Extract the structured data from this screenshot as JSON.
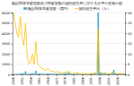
{
  "chart_data": {
    "type": "bar",
    "title": "施設関係等被害額及び同被害額の国民総生産に対する比率の推移の図",
    "categories": [
      1946,
      null,
      null,
      null,
      null,
      1951,
      null,
      null,
      null,
      null,
      1956,
      null,
      null,
      null,
      null,
      1961,
      null,
      null,
      null,
      null,
      1966,
      null,
      null,
      null,
      null,
      1971,
      null,
      null,
      null,
      null,
      1976,
      null,
      null,
      null,
      null,
      1981,
      null,
      null,
      null,
      null,
      1986,
      null,
      null,
      null,
      null,
      1991,
      null,
      null,
      null,
      null,
      1996,
      null,
      null,
      null,
      null,
      2001,
      null,
      null,
      null,
      null,
      2006,
      null,
      null,
      null,
      null
    ],
    "series": [
      {
        "name": "施設関係等被害額（億円）",
        "type": "bar",
        "color": "#4bacc6",
        "values": [
          30,
          40,
          50,
          60,
          80,
          100,
          120,
          300,
          80,
          60,
          80,
          130,
          80,
          350,
          100,
          80,
          70,
          80,
          60,
          70,
          100,
          80,
          60,
          70,
          60,
          70,
          80,
          60,
          70,
          80,
          130,
          100,
          220,
          70,
          60,
          70,
          60,
          130,
          60,
          60,
          70,
          60,
          60,
          60,
          60,
          100,
          80,
          140,
          80,
          6000,
          200,
          150,
          120,
          150,
          80,
          100,
          80,
          200,
          450,
          120,
          80,
          100,
          110,
          80,
          100
        ]
      },
      {
        "name": "国民総生産比（%）",
        "type": "line",
        "color": "#ffc000",
        "axis": "y2",
        "values": [
          30,
          25,
          20,
          18,
          28,
          18,
          14,
          25,
          8,
          5,
          6,
          10,
          5,
          16,
          5,
          4,
          3,
          3,
          2,
          2,
          3,
          2,
          1.5,
          1.5,
          1,
          1.2,
          1.2,
          0.8,
          0.8,
          0.8,
          1.2,
          0.8,
          1.5,
          0.5,
          0.4,
          0.5,
          0.4,
          0.8,
          0.3,
          0.3,
          0.3,
          0.3,
          0.3,
          0.3,
          0.3,
          0.5,
          0.3,
          0.6,
          0.3,
          22,
          0.8,
          0.5,
          0.4,
          0.5,
          0.25,
          0.35,
          0.25,
          0.6,
          1.2,
          0.35,
          0.25,
          0.35,
          0.35,
          0.25,
          0.35
        ]
      }
    ],
    "ylim": [
      0,
      6000
    ],
    "yticks": [
      0,
      1000,
      2000,
      3000,
      4000,
      5000,
      6000
    ],
    "y2lim": [
      0,
      30
    ],
    "y2ticks": [
      0,
      5,
      10,
      15,
      20,
      25,
      30
    ],
    "grid": true,
    "legend": "top"
  }
}
